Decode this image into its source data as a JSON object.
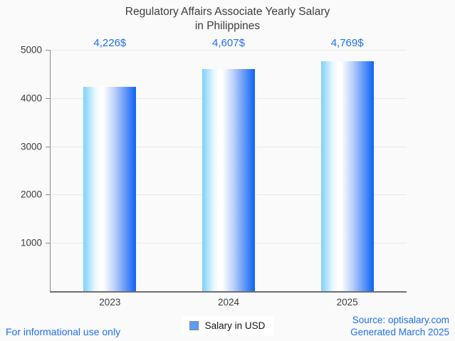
{
  "header": {
    "title_line1": "Regulatory Affairs Associate Yearly Salary",
    "title_line2": "in Philippines"
  },
  "chart_data": {
    "type": "bar",
    "title": "Regulatory Affairs Associate Yearly Salary in Philippines",
    "categories": [
      "2023",
      "2024",
      "2025"
    ],
    "values": [
      4226,
      4607,
      4769
    ],
    "value_labels": [
      "4,226$",
      "4,607$",
      "4,769$"
    ],
    "series_name": "Salary in USD",
    "xlabel": "",
    "ylabel": "",
    "ylim": [
      0,
      5000
    ],
    "yticks": [
      1000,
      2000,
      3000,
      4000,
      5000
    ],
    "grid": true,
    "legend_position": "bottom-center",
    "colors": {
      "bar_gradient": [
        "#7ed0fb",
        "#ffffff",
        "#0d63f5"
      ],
      "value_label": "#1e6ff2",
      "axis_line": "#6f6f6f",
      "grid_line": "#e9e9e9",
      "tick_text": "#3d3d3d",
      "legend_marker": "#5b9ff5",
      "background": "#fafafa"
    }
  },
  "legend": {
    "label": "Salary in USD"
  },
  "footer": {
    "disclaimer": "For informational use only",
    "source": "Source: optisalary.com",
    "generated": "Generated March 2025"
  }
}
